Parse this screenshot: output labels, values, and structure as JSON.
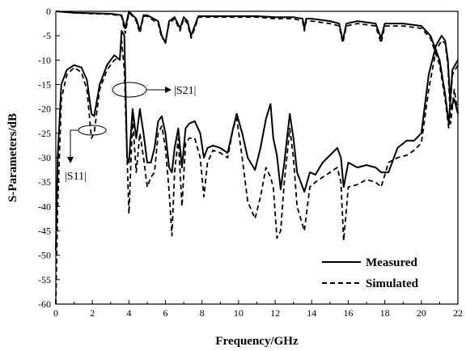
{
  "chart_data": {
    "type": "line",
    "title": "",
    "xlabel": "Frequency/GHz",
    "ylabel": "S-Parameters/dB",
    "xlim": [
      0,
      22
    ],
    "ylim": [
      -60,
      0
    ],
    "xticks": [
      0,
      2,
      4,
      6,
      8,
      10,
      12,
      14,
      16,
      18,
      20,
      22
    ],
    "yticks": [
      0,
      -5,
      -10,
      -15,
      -20,
      -25,
      -30,
      -35,
      -40,
      -45,
      -50,
      -55,
      -60
    ],
    "grid": false,
    "legend": {
      "position": "bottom-right",
      "entries": [
        {
          "label": "Measured",
          "style": "solid"
        },
        {
          "label": "Simulated",
          "style": "dashed"
        }
      ]
    },
    "annotations": [
      {
        "text": "|S21|",
        "points_to": "S21 curves near 4 GHz"
      },
      {
        "text": "|S11|",
        "points_to": "S11 curves near 1.5 GHz"
      }
    ],
    "series": [
      {
        "name": "Measured",
        "parameter": "S21",
        "style": "solid",
        "x": [
          0,
          1,
          2,
          3,
          3.6,
          3.8,
          4.0,
          4.2,
          4.4,
          4.6,
          4.8,
          5.0,
          5.2,
          5.6,
          5.8,
          6.0,
          6.2,
          6.5,
          6.8,
          7.0,
          7.2,
          7.4,
          7.6,
          7.8,
          8.0,
          9,
          10,
          11,
          12,
          13,
          13.5,
          13.6,
          13.7,
          14,
          15,
          15.5,
          15.7,
          15.9,
          16.5,
          17.5,
          17.8,
          18.0,
          19,
          20,
          20.5,
          21.0,
          21.3,
          21.5,
          21.7,
          22
        ],
        "y": [
          0,
          -0.3,
          -0.4,
          -0.5,
          -0.8,
          -3.5,
          0,
          -0.8,
          -1.5,
          -4.0,
          -0.8,
          -0.8,
          -1.2,
          -2.0,
          -5.0,
          -6.5,
          -2.0,
          -1.2,
          -3.5,
          -1.2,
          -2.0,
          -5.0,
          -3.0,
          -1.0,
          -1.0,
          -1.0,
          -1.0,
          -1.0,
          -1.2,
          -1.2,
          -1.5,
          -3.5,
          -1.5,
          -1.5,
          -2.0,
          -2.5,
          -6.0,
          -2.5,
          -2.0,
          -2.5,
          -5.5,
          -2.5,
          -2.5,
          -3.0,
          -5.0,
          -10.0,
          -17.0,
          -23.0,
          -12.0,
          -10.0
        ]
      },
      {
        "name": "Simulated",
        "parameter": "S21",
        "style": "dashed",
        "x": [
          0,
          1,
          2,
          3,
          3.6,
          3.8,
          4.0,
          4.2,
          4.4,
          4.6,
          4.8,
          5.0,
          5.2,
          5.6,
          5.8,
          6.0,
          6.2,
          6.5,
          6.8,
          7.0,
          7.2,
          7.4,
          7.6,
          7.8,
          8.0,
          9,
          10,
          11,
          12,
          13,
          13.5,
          13.6,
          13.7,
          14,
          15,
          15.5,
          15.7,
          15.9,
          16.5,
          17.5,
          17.8,
          18.0,
          19,
          20,
          20.5,
          21.0,
          21.3,
          21.5,
          21.7,
          22
        ],
        "y": [
          0,
          -0.3,
          -0.5,
          -0.6,
          -1.0,
          -4.5,
          -0.3,
          -1.0,
          -2.0,
          -4.5,
          -1.0,
          -1.0,
          -1.5,
          -2.5,
          -5.5,
          -6.0,
          -2.5,
          -1.5,
          -4.0,
          -1.5,
          -2.5,
          -5.5,
          -3.5,
          -1.2,
          -1.2,
          -1.2,
          -1.2,
          -1.2,
          -1.5,
          -1.5,
          -2.0,
          -4.0,
          -2.0,
          -2.0,
          -2.5,
          -3.0,
          -6.5,
          -3.0,
          -2.5,
          -3.0,
          -6.5,
          -3.0,
          -3.0,
          -3.5,
          -5.5,
          -11.0,
          -18.0,
          -24.0,
          -13.0,
          -11.0
        ]
      },
      {
        "name": "Measured",
        "parameter": "S11",
        "style": "solid",
        "x": [
          0,
          0.1,
          0.3,
          0.6,
          1.0,
          1.4,
          1.7,
          1.95,
          2.1,
          2.4,
          2.8,
          3.2,
          3.5,
          3.6,
          3.75,
          3.9,
          4.0,
          4.2,
          4.4,
          4.6,
          4.8,
          5.0,
          5.2,
          5.4,
          5.6,
          5.8,
          6.0,
          6.2,
          6.35,
          6.5,
          6.7,
          6.9,
          7.1,
          7.3,
          7.6,
          7.9,
          8.1,
          8.3,
          8.6,
          9.0,
          9.4,
          9.7,
          9.9,
          10.2,
          10.5,
          10.9,
          11.2,
          11.5,
          11.75,
          11.9,
          12.1,
          12.3,
          12.5,
          12.8,
          13.0,
          13.2,
          13.6,
          13.9,
          14.2,
          14.6,
          15.0,
          15.4,
          15.6,
          15.75,
          16.0,
          16.5,
          17.0,
          17.5,
          17.8,
          18.2,
          18.7,
          19.2,
          19.6,
          20.0,
          20.4,
          20.8,
          21.1,
          21.3,
          21.45,
          21.6,
          21.8,
          22.0
        ],
        "y": [
          -49,
          -30,
          -15,
          -12,
          -11,
          -11.5,
          -14,
          -21,
          -21.5,
          -15,
          -11,
          -9,
          -10,
          -4,
          -5,
          -30,
          -31,
          -20,
          -26,
          -20,
          -25,
          -31,
          -31,
          -28,
          -22.5,
          -21.5,
          -25,
          -32,
          -33,
          -28,
          -24,
          -32,
          -24,
          -23,
          -22.5,
          -25,
          -30,
          -28,
          -27.5,
          -28,
          -29,
          -24,
          -21,
          -25,
          -30,
          -32.5,
          -28,
          -22,
          -19,
          -26,
          -29.5,
          -36.5,
          -31,
          -21,
          -26,
          -33,
          -37,
          -33,
          -33.5,
          -31,
          -29.5,
          -28,
          -30,
          -36,
          -31,
          -32,
          -31.5,
          -32,
          -33,
          -33,
          -28,
          -26.5,
          -26.5,
          -25,
          -13,
          -7,
          -5,
          -6,
          -10,
          -20,
          -18,
          -21
        ]
      },
      {
        "name": "Simulated",
        "parameter": "S11",
        "style": "dashed",
        "x": [
          0,
          0.1,
          0.3,
          0.6,
          1.0,
          1.4,
          1.7,
          1.95,
          2.1,
          2.4,
          2.8,
          3.2,
          3.5,
          3.6,
          3.75,
          3.9,
          4.0,
          4.2,
          4.4,
          4.6,
          4.8,
          5.0,
          5.2,
          5.4,
          5.6,
          5.8,
          6.0,
          6.2,
          6.35,
          6.5,
          6.7,
          6.9,
          7.1,
          7.3,
          7.6,
          7.9,
          8.1,
          8.3,
          8.6,
          9.0,
          9.4,
          9.7,
          9.9,
          10.2,
          10.5,
          10.9,
          11.2,
          11.5,
          11.75,
          11.9,
          12.1,
          12.3,
          12.5,
          12.8,
          13.0,
          13.2,
          13.6,
          13.9,
          14.2,
          14.6,
          15.0,
          15.4,
          15.6,
          15.75,
          16.0,
          16.5,
          17.0,
          17.5,
          17.8,
          18.2,
          18.7,
          19.2,
          19.6,
          20.0,
          20.4,
          20.8,
          21.1,
          21.3,
          21.45,
          21.6,
          21.8,
          22.0
        ],
        "y": [
          -60,
          -40,
          -18,
          -13,
          -11.5,
          -12.5,
          -16,
          -26,
          -25,
          -16,
          -12,
          -10,
          -9.5,
          -6,
          -12,
          -30,
          -41.5,
          -22,
          -33,
          -25,
          -30,
          -36,
          -34,
          -33,
          -25,
          -23.5,
          -28,
          -37,
          -46,
          -33,
          -26,
          -40,
          -27,
          -26,
          -26,
          -30,
          -38,
          -31,
          -28.5,
          -29,
          -30,
          -24,
          -22,
          -30,
          -39,
          -42.5,
          -38,
          -32,
          -34,
          -36,
          -46.5,
          -45,
          -35,
          -24,
          -30,
          -40,
          -45,
          -36,
          -35,
          -34,
          -33,
          -32,
          -35,
          -47,
          -36,
          -35.5,
          -34.5,
          -35,
          -36,
          -31,
          -30,
          -29.5,
          -28.5,
          -27,
          -16,
          -8,
          -6,
          -6.5,
          -11,
          -23,
          -16,
          -21
        ]
      }
    ]
  }
}
